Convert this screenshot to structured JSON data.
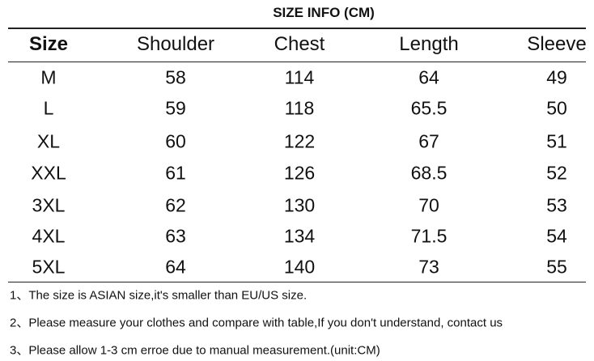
{
  "title": "SIZE INFO (CM)",
  "table": {
    "header": [
      "Size",
      "Shoulder",
      "Chest",
      "Length",
      "Sleeve"
    ],
    "rows": [
      [
        "M",
        58,
        114,
        64,
        49
      ],
      [
        "L",
        59,
        118,
        65.5,
        50
      ],
      [
        "XL",
        60,
        122,
        67,
        51
      ],
      [
        "XXL",
        61,
        126,
        68.5,
        52
      ],
      [
        "3XL",
        62,
        130,
        70,
        53
      ],
      [
        "4XL",
        63,
        134,
        71.5,
        54
      ],
      [
        "5XL",
        64,
        140,
        73,
        55
      ]
    ]
  },
  "notes": [
    "1、The size is ASIAN size,it's smaller than EU/US size.",
    "2、Please measure your clothes and compare with table,If you don't understand, contact us",
    "3、Please allow 1-3 cm erroe due to manual measurement.(unit:CM)"
  ]
}
